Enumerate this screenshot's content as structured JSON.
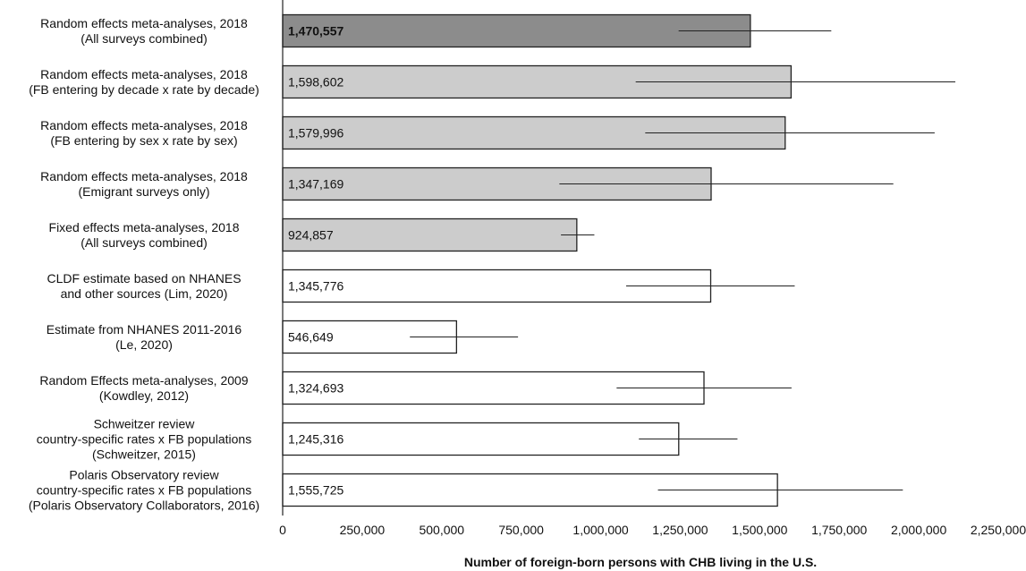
{
  "chart_data": {
    "type": "bar",
    "orientation": "horizontal",
    "title": "",
    "xlabel": "Number of foreign-born persons with CHB living in the U.S.",
    "ylabel": "",
    "xlim": [
      0,
      2250000
    ],
    "xticks": [
      0,
      250000,
      500000,
      750000,
      1000000,
      1250000,
      1500000,
      1750000,
      2000000,
      2250000
    ],
    "xtick_labels": [
      "0",
      "250,000",
      "500,000",
      "750,000",
      "1,000,000",
      "1,250,000",
      "1,500,000",
      "1,750,000",
      "2,000,000",
      "2,250,000"
    ],
    "grid": false,
    "bars": [
      {
        "label_lines": [
          "Random effects meta-analyses, 2018",
          "(All surveys combined)"
        ],
        "value": 1470557,
        "value_label": "1,470,557",
        "error": [
          1245000,
          1725000
        ],
        "fill": "#8c8c8c",
        "bold": true
      },
      {
        "label_lines": [
          "Random effects meta-analyses, 2018",
          "(FB entering by decade x rate by decade)"
        ],
        "value": 1598602,
        "value_label": "1,598,602",
        "error": [
          1110000,
          2115000
        ],
        "fill": "#cccccc",
        "bold": false
      },
      {
        "label_lines": [
          "Random effects meta-analyses, 2018",
          "(FB entering by sex x rate by sex)"
        ],
        "value": 1579996,
        "value_label": "1,579,996",
        "error": [
          1140000,
          2050000
        ],
        "fill": "#cccccc",
        "bold": false
      },
      {
        "label_lines": [
          "Random effects meta-analyses, 2018",
          "(Emigrant surveys only)"
        ],
        "value": 1347169,
        "value_label": "1,347,169",
        "error": [
          870000,
          1920000
        ],
        "fill": "#cccccc",
        "bold": false
      },
      {
        "label_lines": [
          "Fixed effects meta-analyses, 2018",
          "(All surveys combined)"
        ],
        "value": 924857,
        "value_label": "924,857",
        "error": [
          875000,
          980000
        ],
        "fill": "#cccccc",
        "bold": false
      },
      {
        "label_lines": [
          "CLDF estimate based on NHANES",
          "and other sources (Lim, 2020)"
        ],
        "value": 1345776,
        "value_label": "1,345,776",
        "error": [
          1080000,
          1610000
        ],
        "fill": "#ffffff",
        "bold": false
      },
      {
        "label_lines": [
          "Estimate from NHANES 2011-2016",
          "(Le, 2020)"
        ],
        "value": 546649,
        "value_label": "546,649",
        "error": [
          400000,
          740000
        ],
        "fill": "#ffffff",
        "bold": false
      },
      {
        "label_lines": [
          "Random Effects meta-analyses, 2009",
          "(Kowdley, 2012)"
        ],
        "value": 1324693,
        "value_label": "1,324,693",
        "error": [
          1050000,
          1600000
        ],
        "fill": "#ffffff",
        "bold": false
      },
      {
        "label_lines": [
          "Schweitzer review",
          "country-specific rates x FB populations",
          "(Schweitzer, 2015)"
        ],
        "value": 1245316,
        "value_label": "1,245,316",
        "error": [
          1120000,
          1430000
        ],
        "fill": "#ffffff",
        "bold": false
      },
      {
        "label_lines": [
          "Polaris Observatory review",
          "country-specific rates x FB populations",
          "(Polaris Observatory Collaborators, 2016)"
        ],
        "value": 1555725,
        "value_label": "1,555,725",
        "error": [
          1180000,
          1950000
        ],
        "fill": "#ffffff",
        "bold": false
      }
    ]
  }
}
